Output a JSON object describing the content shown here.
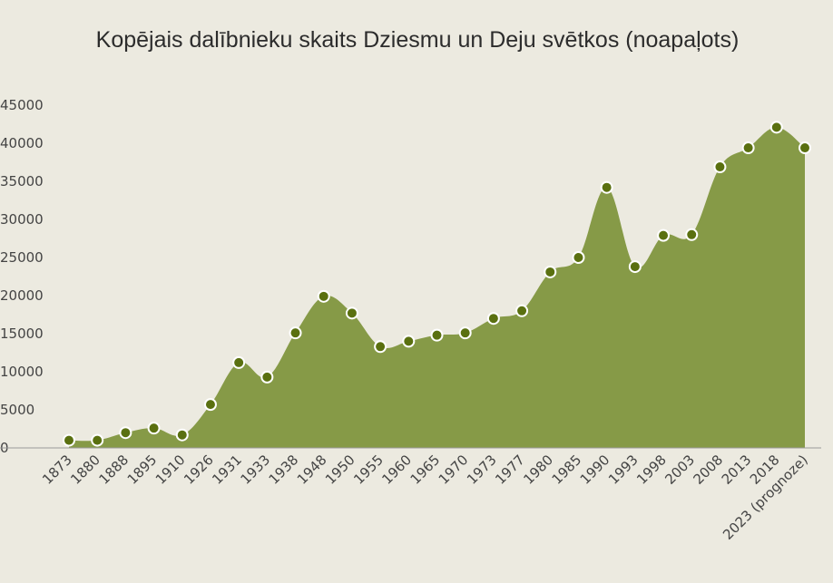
{
  "chart_data": {
    "type": "area",
    "title": "Kopējais dalībnieku skaits Dziesmu un Deju svētkos (noapaļots)",
    "categories": [
      "1873",
      "1880",
      "1888",
      "1895",
      "1910",
      "1926",
      "1931",
      "1933",
      "1938",
      "1948",
      "1950",
      "1955",
      "1960",
      "1965",
      "1970",
      "1973",
      "1977",
      "1980",
      "1985",
      "1990",
      "1993",
      "1998",
      "2003",
      "2008",
      "2013",
      "2018",
      "2023 (prognoze)"
    ],
    "values": [
      1000,
      1000,
      2000,
      2600,
      1700,
      5700,
      11200,
      9300,
      15100,
      19900,
      17700,
      13300,
      14000,
      14800,
      15100,
      17000,
      18000,
      23100,
      25000,
      34200,
      23800,
      27900,
      28000,
      36900,
      39400,
      42100,
      39400
    ],
    "color": "#869a47",
    "marker_color": "#5a7010",
    "ylim": [
      0,
      45000
    ],
    "yticks": [
      0,
      5000,
      10000,
      15000,
      20000,
      25000,
      30000,
      35000,
      40000,
      45000
    ]
  }
}
